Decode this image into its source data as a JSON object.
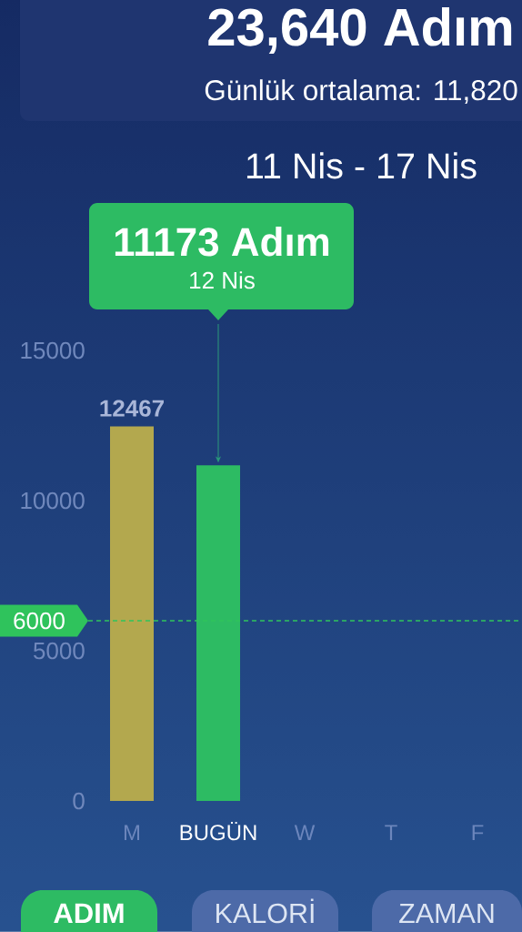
{
  "chart_data": {
    "type": "bar",
    "title": "23,640 Adım",
    "subtitle": "Günlük ortalama:  11,820",
    "categories": [
      "M",
      "BUGÜN",
      "W",
      "T",
      "F"
    ],
    "values": [
      12467,
      11173,
      null,
      null,
      null
    ],
    "colors": [
      "#b3a84e",
      "#2dbb63",
      null,
      null,
      null
    ],
    "value_labels": [
      "12467",
      null,
      null,
      null,
      null
    ],
    "ylim": [
      0,
      15000
    ],
    "yticks": [
      0,
      5000,
      10000,
      15000
    ],
    "ref_lines": [
      {
        "axis": "y",
        "value": 6000,
        "label": "6000",
        "color": "#2fc35c",
        "line_style": "dashed"
      }
    ],
    "annotations": [
      "11 Nis - 17 Nis",
      "11173 Adım",
      "12 Nis",
      "ADIM",
      "KALORİ",
      "ZAMAN"
    ]
  }
}
